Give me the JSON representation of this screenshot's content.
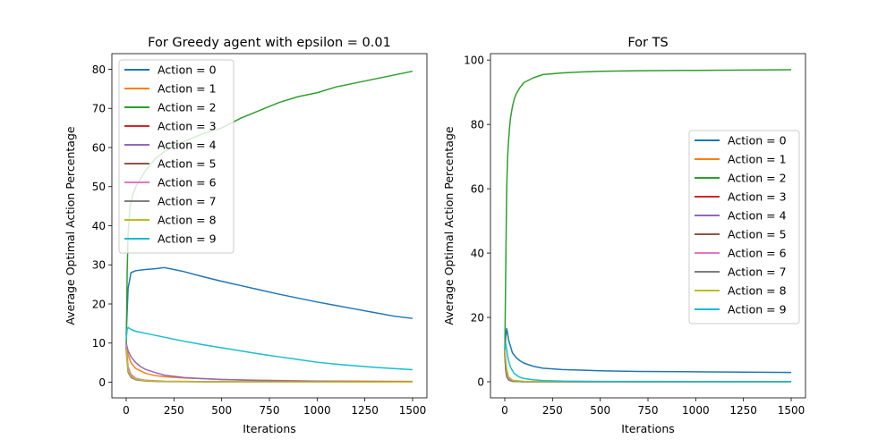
{
  "chart_data": [
    {
      "type": "line",
      "title": "For Greedy agent with epsilon = 0.01",
      "xlabel": "Iterations",
      "ylabel": "Average Optimal Action Percentage",
      "xlim": [
        -75,
        1575
      ],
      "ylim": [
        -4,
        84
      ],
      "xticks": [
        0,
        250,
        500,
        750,
        1000,
        1250,
        1500
      ],
      "yticks": [
        0,
        10,
        20,
        30,
        40,
        50,
        60,
        70,
        80
      ],
      "legend": "upper-left",
      "series": [
        {
          "name": "Action = 0",
          "color": "#1f77b4",
          "x": [
            0,
            10,
            25,
            50,
            100,
            150,
            200,
            250,
            300,
            400,
            500,
            600,
            700,
            800,
            900,
            1000,
            1100,
            1200,
            1300,
            1400,
            1500
          ],
          "values": [
            12,
            24,
            28,
            28.5,
            28.8,
            29,
            29.3,
            28.8,
            28.3,
            27,
            25.8,
            24.7,
            23.6,
            22.5,
            21.5,
            20.5,
            19.6,
            18.7,
            17.8,
            16.9,
            16.3
          ]
        },
        {
          "name": "Action = 1",
          "color": "#ff7f0e",
          "x": [
            0,
            10,
            25,
            50,
            100,
            150,
            200,
            300,
            400,
            500,
            700,
            1000,
            1500
          ],
          "values": [
            10,
            7,
            5,
            3.5,
            2.3,
            1.7,
            1.4,
            1.1,
            0.9,
            0.7,
            0.5,
            0.3,
            0.2
          ]
        },
        {
          "name": "Action = 2",
          "color": "#2ca02c",
          "x": [
            0,
            5,
            10,
            20,
            35,
            50,
            75,
            100,
            150,
            200,
            250,
            300,
            400,
            500,
            600,
            700,
            800,
            900,
            1000,
            1100,
            1200,
            1300,
            1400,
            1500
          ],
          "values": [
            8,
            28,
            38,
            45,
            48,
            50,
            52,
            54,
            57,
            59,
            60.5,
            61.5,
            63.5,
            65,
            67.5,
            69.5,
            71.5,
            73,
            74,
            75.5,
            76.5,
            77.5,
            78.5,
            79.5
          ]
        },
        {
          "name": "Action = 3",
          "color": "#d62728",
          "x": [
            0,
            10,
            25,
            50,
            100,
            200,
            500,
            1000,
            1500
          ],
          "values": [
            9,
            3,
            1.5,
            0.8,
            0.4,
            0.2,
            0.1,
            0.05,
            0.05
          ]
        },
        {
          "name": "Action = 4",
          "color": "#9467bd",
          "x": [
            0,
            10,
            25,
            50,
            75,
            100,
            150,
            200,
            300,
            400,
            500,
            700,
            1000,
            1500
          ],
          "values": [
            10,
            8,
            6.5,
            5,
            4,
            3.3,
            2.5,
            1.8,
            1.2,
            0.9,
            0.7,
            0.4,
            0.25,
            0.1
          ]
        },
        {
          "name": "Action = 5",
          "color": "#8c564b",
          "x": [
            0,
            10,
            25,
            50,
            100,
            200,
            500,
            1000,
            1500
          ],
          "values": [
            9,
            3,
            1.5,
            0.8,
            0.4,
            0.2,
            0.1,
            0.05,
            0.05
          ]
        },
        {
          "name": "Action = 6",
          "color": "#e377c2",
          "x": [
            0,
            10,
            25,
            50,
            100,
            200,
            500,
            1000,
            1500
          ],
          "values": [
            9.5,
            4,
            2,
            1,
            0.5,
            0.25,
            0.1,
            0.05,
            0.05
          ]
        },
        {
          "name": "Action = 7",
          "color": "#7f7f7f",
          "x": [
            0,
            10,
            25,
            50,
            100,
            200,
            500,
            1000,
            1500
          ],
          "values": [
            8,
            2.5,
            1.2,
            0.6,
            0.3,
            0.15,
            0.08,
            0.05,
            0.05
          ]
        },
        {
          "name": "Action = 8",
          "color": "#bcbd22",
          "x": [
            0,
            10,
            25,
            50,
            100,
            200,
            500,
            1000,
            1500
          ],
          "values": [
            8.5,
            3,
            1.5,
            0.8,
            0.4,
            0.2,
            0.1,
            0.05,
            0.05
          ]
        },
        {
          "name": "Action = 9",
          "color": "#17becf",
          "x": [
            0,
            5,
            10,
            25,
            50,
            100,
            200,
            300,
            400,
            500,
            600,
            700,
            800,
            900,
            1000,
            1100,
            1200,
            1300,
            1400,
            1500
          ],
          "values": [
            11,
            13.5,
            14,
            13.5,
            13,
            12.5,
            11.5,
            10.5,
            9.6,
            8.8,
            8,
            7.2,
            6.5,
            5.8,
            5.1,
            4.6,
            4.2,
            3.8,
            3.5,
            3.2
          ]
        }
      ]
    },
    {
      "type": "line",
      "title": "For TS",
      "xlabel": "Iterations",
      "ylabel": "Average Optimal Action Percentage",
      "xlim": [
        -75,
        1575
      ],
      "ylim": [
        -5,
        102
      ],
      "xticks": [
        0,
        250,
        500,
        750,
        1000,
        1250,
        1500
      ],
      "yticks": [
        0,
        20,
        40,
        60,
        80,
        100
      ],
      "legend": "center-right",
      "series": [
        {
          "name": "Action = 0",
          "color": "#1f77b4",
          "x": [
            0,
            5,
            10,
            15,
            20,
            30,
            40,
            60,
            80,
            100,
            150,
            200,
            300,
            400,
            500,
            700,
            1000,
            1250,
            1500
          ],
          "values": [
            10,
            14,
            16.5,
            15,
            13,
            11,
            9,
            7.5,
            6.5,
            5.8,
            4.8,
            4.2,
            3.8,
            3.6,
            3.4,
            3.2,
            3.1,
            3.0,
            2.9
          ]
        },
        {
          "name": "Action = 1",
          "color": "#ff7f0e",
          "x": [
            0,
            5,
            10,
            20,
            40,
            100,
            200,
            1500
          ],
          "values": [
            10,
            6,
            3,
            1,
            0.3,
            0.1,
            0,
            0
          ]
        },
        {
          "name": "Action = 2",
          "color": "#2ca02c",
          "x": [
            0,
            5,
            10,
            15,
            20,
            25,
            30,
            40,
            50,
            60,
            80,
            100,
            150,
            200,
            300,
            400,
            500,
            700,
            1000,
            1250,
            1500
          ],
          "values": [
            8,
            35,
            60,
            70,
            75,
            79,
            82,
            85.5,
            88,
            89.5,
            91.5,
            93,
            94.5,
            95.5,
            96,
            96.3,
            96.5,
            96.7,
            96.8,
            96.9,
            97
          ]
        },
        {
          "name": "Action = 3",
          "color": "#d62728",
          "x": [
            0,
            5,
            10,
            20,
            40,
            100,
            1500
          ],
          "values": [
            9,
            4,
            2,
            0.6,
            0.2,
            0,
            0
          ]
        },
        {
          "name": "Action = 4",
          "color": "#9467bd",
          "x": [
            0,
            5,
            10,
            20,
            40,
            100,
            1500
          ],
          "values": [
            10,
            5,
            2.5,
            0.8,
            0.2,
            0,
            0
          ]
        },
        {
          "name": "Action = 5",
          "color": "#8c564b",
          "x": [
            0,
            5,
            10,
            20,
            40,
            100,
            1500
          ],
          "values": [
            9,
            4,
            2,
            0.6,
            0.2,
            0,
            0
          ]
        },
        {
          "name": "Action = 6",
          "color": "#e377c2",
          "x": [
            0,
            5,
            10,
            20,
            40,
            100,
            1500
          ],
          "values": [
            9.5,
            5,
            2.5,
            0.8,
            0.2,
            0,
            0
          ]
        },
        {
          "name": "Action = 7",
          "color": "#7f7f7f",
          "x": [
            0,
            5,
            10,
            20,
            40,
            100,
            1500
          ],
          "values": [
            8,
            3.5,
            1.5,
            0.5,
            0.1,
            0,
            0
          ]
        },
        {
          "name": "Action = 8",
          "color": "#bcbd22",
          "x": [
            0,
            5,
            10,
            20,
            40,
            100,
            1500
          ],
          "values": [
            11,
            7,
            4,
            1.5,
            0.5,
            0.1,
            0
          ]
        },
        {
          "name": "Action = 9",
          "color": "#17becf",
          "x": [
            0,
            5,
            10,
            15,
            20,
            30,
            50,
            75,
            100,
            150,
            200,
            300,
            500,
            1000,
            1500
          ],
          "values": [
            10,
            12,
            10,
            8,
            6.5,
            4.5,
            2.5,
            1.5,
            1,
            0.6,
            0.4,
            0.2,
            0.1,
            0.05,
            0
          ]
        }
      ]
    }
  ]
}
